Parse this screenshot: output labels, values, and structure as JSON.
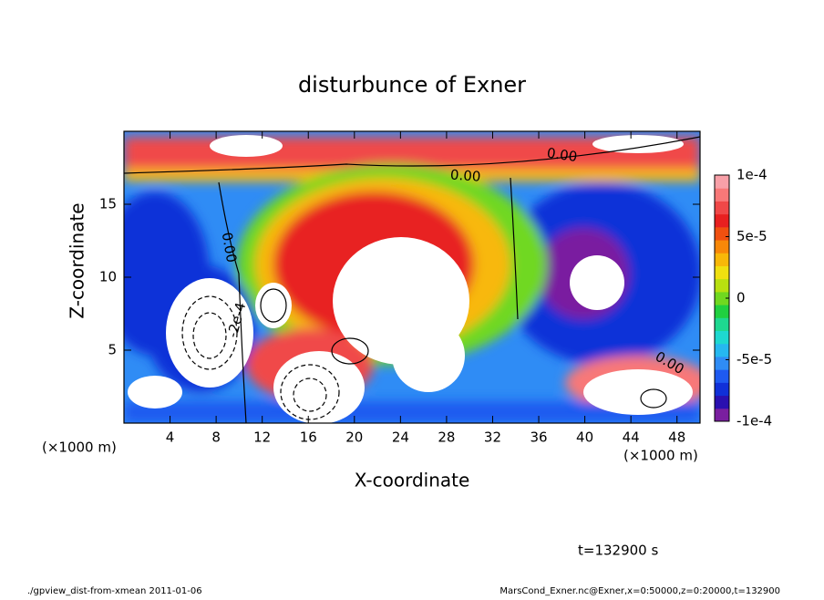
{
  "chart_data": {
    "type": "contour",
    "title": "disturbunce of Exner",
    "x_label": "X-coordinate",
    "y_label": "Z-coordinate",
    "x_unit_label": "(×1000 m)",
    "xlim": [
      0,
      50
    ],
    "ylim": [
      0,
      20
    ],
    "xticks": [
      4,
      8,
      12,
      16,
      20,
      24,
      28,
      32,
      36,
      40,
      44,
      48
    ],
    "yticks": [
      5,
      10,
      15
    ],
    "colorbar_lim": [
      -0.0001,
      0.0001
    ],
    "colorbar_ticks": [
      {
        "value": 0.0001,
        "label": "1e-4"
      },
      {
        "value": 5e-05,
        "label": "5e-5"
      },
      {
        "value": 0,
        "label": "0"
      },
      {
        "value": -5e-05,
        "label": "-5e-5"
      },
      {
        "value": -0.0001,
        "label": "-1e-4"
      }
    ],
    "colors": [
      "#7a1fa0",
      "#2a10b0",
      "#1030d8",
      "#1e5af0",
      "#2f8cf5",
      "#26b8f0",
      "#1ed8d0",
      "#1ed890",
      "#20d040",
      "#70d820",
      "#b8e010",
      "#f0e010",
      "#f8b808",
      "#f88808",
      "#f05010",
      "#e82020",
      "#f04848",
      "#f87878",
      "#f8a0a8",
      "#ffffff"
    ],
    "contour_labels": [
      "0.00",
      "0.00",
      "0.00",
      "0.00",
      "-2e-4"
    ],
    "time_label": "t=132900 s",
    "footer_left": "./gpview_dist-from-xmean  2011-01-06",
    "footer_right": "MarsCond_Exner.nc@Exner,x=0:50000,z=0:20000,t=132900"
  }
}
